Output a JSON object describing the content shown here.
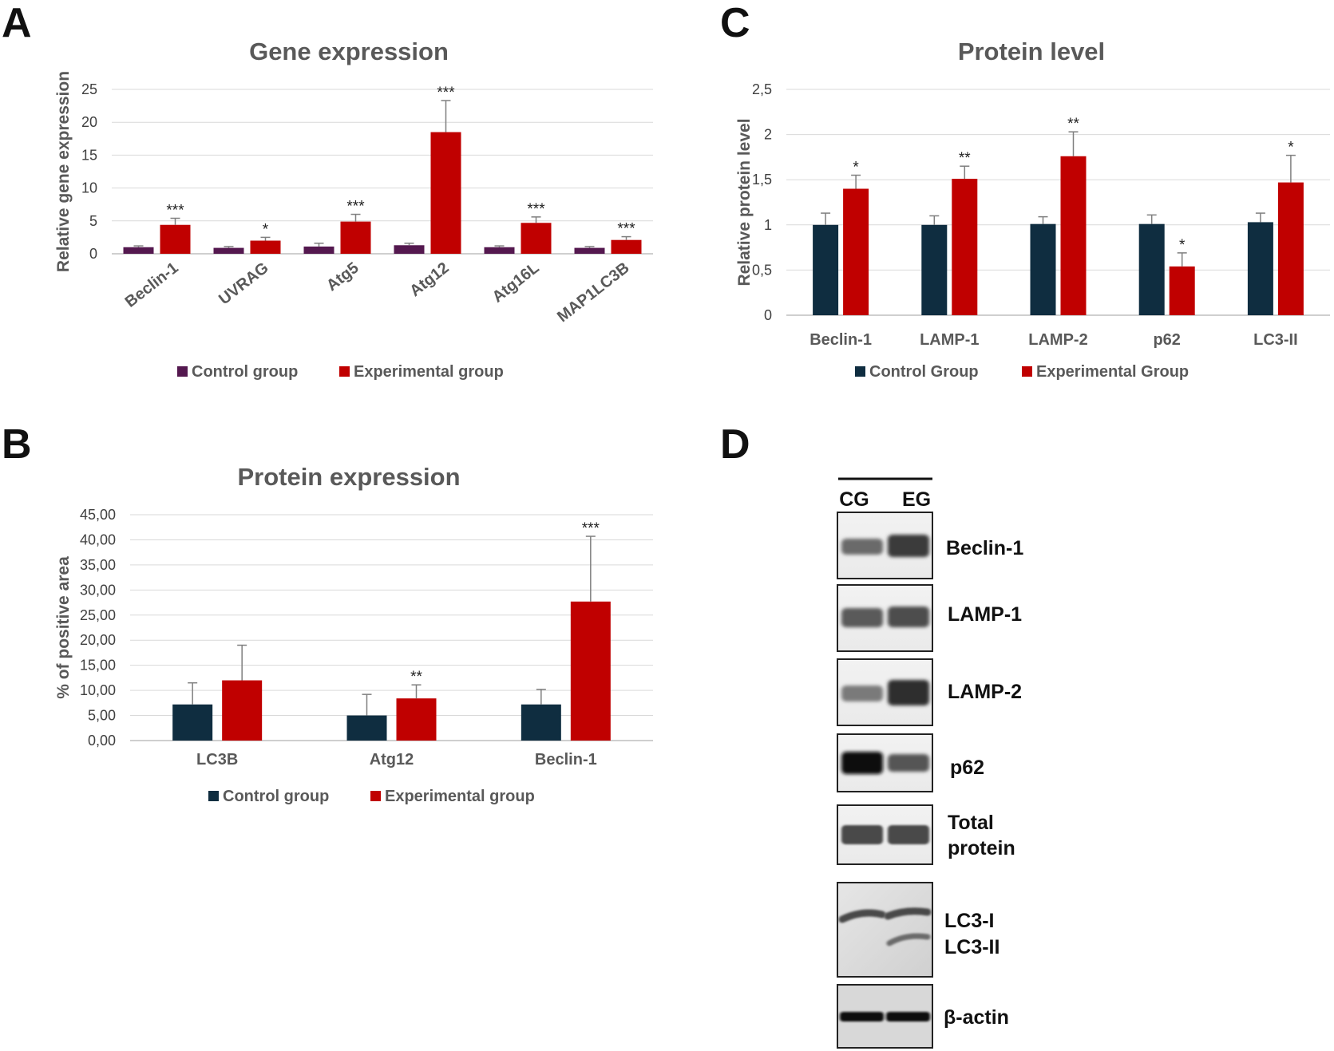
{
  "panels": {
    "a": "A",
    "b": "B",
    "c": "C",
    "d": "D"
  },
  "colors": {
    "control_a": "#54184f",
    "control_bc": "#0f2d40",
    "experimental": "#c00000",
    "grid": "#d9d9d9",
    "axis": "#bfbfbf"
  },
  "chart_data": [
    {
      "id": "a",
      "type": "bar",
      "title": "Gene expression",
      "xlabel": "",
      "ylabel": "Relative gene expression",
      "ylim": [
        0,
        25
      ],
      "yticks": [
        "0",
        "5",
        "10",
        "15",
        "20",
        "25"
      ],
      "ytick_values": [
        0,
        5,
        10,
        15,
        20,
        25
      ],
      "categories": [
        "Beclin-1",
        "UVRAG",
        "Atg5",
        "Atg12",
        "Atg16L",
        "MAP1LC3B"
      ],
      "series": [
        {
          "name": "Control group",
          "color": "#54184f",
          "values": [
            1.0,
            0.9,
            1.1,
            1.3,
            1.0,
            0.9
          ],
          "errors": [
            0.2,
            0.2,
            0.5,
            0.3,
            0.2,
            0.2
          ],
          "significance": [
            "",
            "",
            "",
            "",
            "",
            ""
          ]
        },
        {
          "name": "Experimental group",
          "color": "#c00000",
          "values": [
            4.4,
            2.0,
            4.9,
            18.5,
            4.7,
            2.1
          ],
          "errors": [
            1.0,
            0.5,
            1.1,
            4.8,
            0.9,
            0.5
          ],
          "significance": [
            "***",
            "*",
            "***",
            "***",
            "***",
            "***"
          ]
        }
      ],
      "rotate_labels": true,
      "grid": true,
      "legend": "bottom"
    },
    {
      "id": "b",
      "type": "bar",
      "title": "Protein expression",
      "xlabel": "",
      "ylabel": "% of positive area",
      "ylim": [
        0,
        45
      ],
      "yticks": [
        "0,00",
        "5,00",
        "10,00",
        "15,00",
        "20,00",
        "25,00",
        "30,00",
        "35,00",
        "40,00",
        "45,00"
      ],
      "ytick_values": [
        0,
        5,
        10,
        15,
        20,
        25,
        30,
        35,
        40,
        45
      ],
      "categories": [
        "LC3B",
        "Atg12",
        "Beclin-1"
      ],
      "series": [
        {
          "name": "Control group",
          "color": "#0f2d40",
          "values": [
            7.2,
            5.0,
            7.2
          ],
          "errors": [
            4.3,
            4.2,
            3.0
          ],
          "significance": [
            "",
            "",
            ""
          ]
        },
        {
          "name": "Experimental group",
          "color": "#c00000",
          "values": [
            12.0,
            8.4,
            27.7
          ],
          "errors": [
            7.0,
            2.7,
            13.0
          ],
          "significance": [
            "",
            "**",
            "***"
          ]
        }
      ],
      "rotate_labels": false,
      "grid": true,
      "legend": "bottom"
    },
    {
      "id": "c",
      "type": "bar",
      "title": "Protein level",
      "xlabel": "",
      "ylabel": "Relative protein level",
      "ylim": [
        0,
        2.5
      ],
      "yticks": [
        "0",
        "0,5",
        "1",
        "1,5",
        "2",
        "2,5"
      ],
      "ytick_values": [
        0,
        0.5,
        1,
        1.5,
        2,
        2.5
      ],
      "categories": [
        "Beclin-1",
        "LAMP-1",
        "LAMP-2",
        "p62",
        "LC3-II"
      ],
      "series": [
        {
          "name": "Control Group",
          "color": "#0f2d40",
          "values": [
            1.0,
            1.0,
            1.01,
            1.01,
            1.03
          ],
          "errors": [
            0.13,
            0.1,
            0.08,
            0.1,
            0.1
          ],
          "significance": [
            "",
            "",
            "",
            "",
            ""
          ]
        },
        {
          "name": "Experimental Group",
          "color": "#c00000",
          "values": [
            1.4,
            1.51,
            1.76,
            0.54,
            1.47
          ],
          "errors": [
            0.15,
            0.14,
            0.27,
            0.15,
            0.3
          ],
          "significance": [
            "*",
            "**",
            "**",
            "*",
            "*"
          ]
        }
      ],
      "rotate_labels": false,
      "grid": true,
      "legend": "bottom"
    }
  ],
  "blot": {
    "lanes": [
      "CG",
      "EG"
    ],
    "bands": [
      {
        "label": "Beclin-1"
      },
      {
        "label": "LAMP-1"
      },
      {
        "label": "LAMP-2"
      },
      {
        "label": "p62"
      },
      {
        "label_line1": "Total",
        "label_line2": "protein"
      },
      {
        "label_line1": "LC3-I",
        "label_line2": "LC3-II"
      },
      {
        "label": "β-actin"
      }
    ]
  }
}
